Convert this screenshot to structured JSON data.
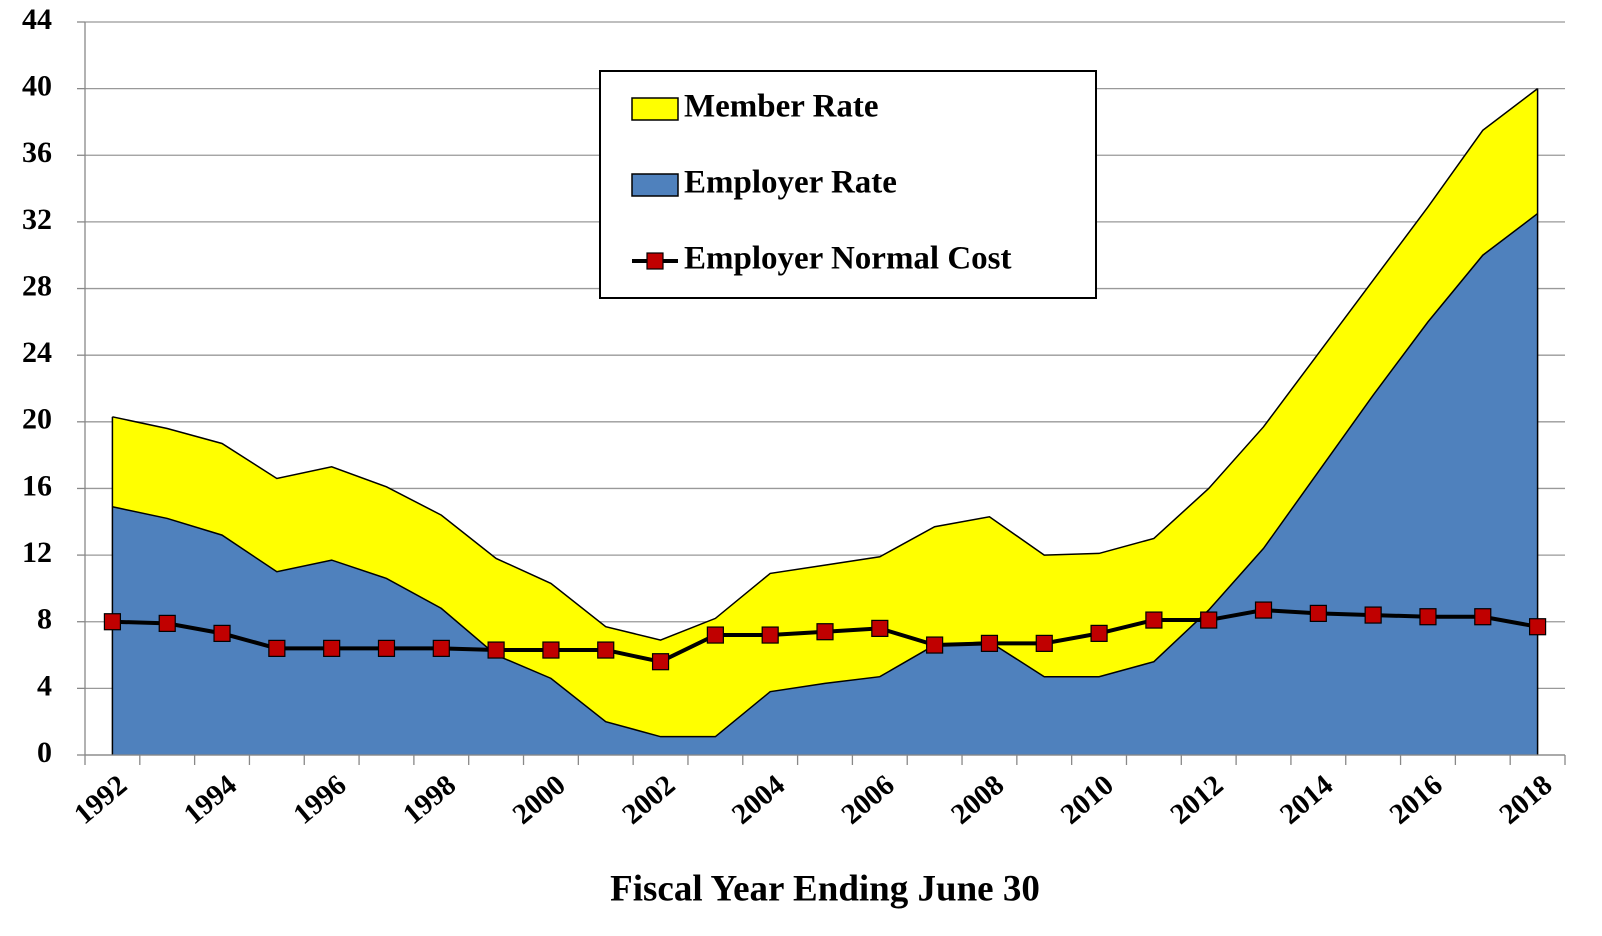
{
  "chart_data": {
    "type": "area",
    "x_label": "Fiscal Year Ending June 30",
    "categories": [
      "1992",
      null,
      "1994",
      null,
      "1996",
      null,
      "1998",
      null,
      "2000",
      null,
      "2002",
      null,
      "2004",
      null,
      "2006",
      null,
      "2008",
      null,
      "2010",
      null,
      "2012",
      null,
      "2014",
      null,
      "2016",
      null,
      "2018"
    ],
    "series": [
      {
        "name": "Member Rate",
        "color": "#ffff00",
        "type": "area",
        "values": [
          5.4,
          5.4,
          5.5,
          5.6,
          5.6,
          5.5,
          5.6,
          5.8,
          5.7,
          5.7,
          5.8,
          7.1,
          7.1,
          7.1,
          7.2,
          7.1,
          7.5,
          7.3,
          7.4,
          7.4,
          7.3,
          7.3,
          7.1,
          6.9,
          6.9,
          7.5,
          7.5
        ]
      },
      {
        "name": "Employer Rate",
        "color": "#4f81bd",
        "type": "area",
        "values": [
          14.9,
          14.2,
          13.2,
          11.0,
          11.7,
          10.6,
          8.8,
          6.0,
          4.6,
          2.0,
          1.1,
          1.1,
          3.8,
          4.3,
          4.7,
          6.6,
          6.8,
          4.7,
          4.7,
          5.6,
          8.7,
          12.4,
          17.0,
          21.6,
          26.0,
          30.0,
          32.5
        ]
      },
      {
        "name": "Employer Normal Cost",
        "color": "#000000",
        "marker_color": "#c00000",
        "type": "line",
        "values": [
          8.0,
          7.9,
          7.3,
          6.4,
          6.4,
          6.4,
          6.4,
          6.3,
          6.3,
          6.3,
          5.6,
          7.2,
          7.2,
          7.4,
          7.6,
          6.6,
          6.7,
          6.7,
          7.3,
          8.1,
          8.1,
          8.7,
          8.5,
          8.4,
          8.3,
          8.3,
          7.7
        ]
      }
    ],
    "ylim": [
      0,
      44
    ],
    "yticks": [
      0,
      4,
      8,
      12,
      16,
      20,
      24,
      28,
      32,
      36,
      40,
      44
    ],
    "grid": true,
    "legend": "top-center"
  }
}
